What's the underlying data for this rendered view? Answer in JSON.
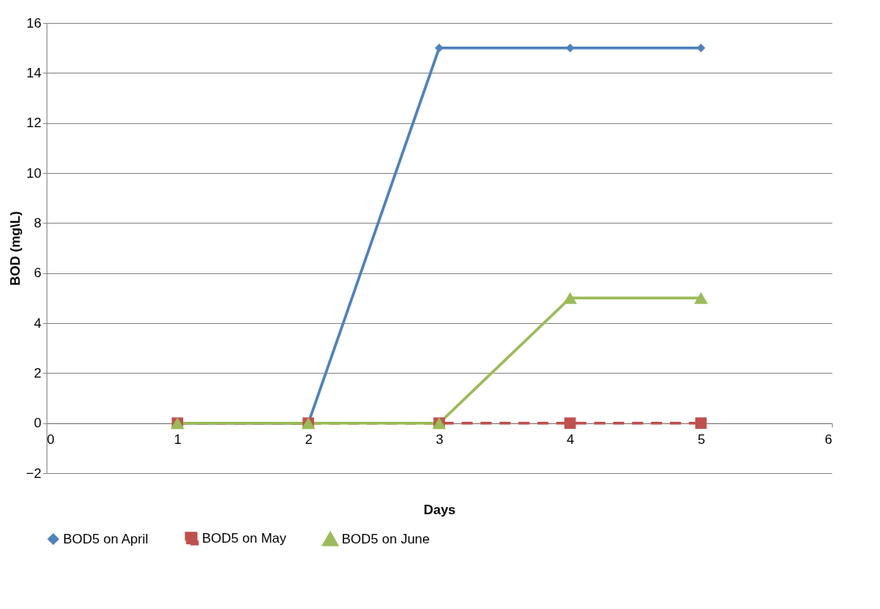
{
  "chart_data": {
    "type": "line",
    "xlabel": "Days",
    "ylabel": "BOD (mg\\L)",
    "x": [
      1,
      2,
      3,
      4,
      5
    ],
    "xlim": [
      0,
      6
    ],
    "xticks": [
      0,
      1,
      2,
      3,
      4,
      5,
      6
    ],
    "ylim": [
      -2,
      16
    ],
    "yticks": [
      -2,
      0,
      2,
      4,
      6,
      8,
      10,
      12,
      14,
      16
    ],
    "grid": "y",
    "legend": "bottom",
    "series": [
      {
        "name": "BOD5 on April",
        "color": "#4f81bd",
        "values": [
          0,
          0,
          15,
          15,
          15
        ],
        "marker": "diamond",
        "line_style": "solid"
      },
      {
        "name": "BOD5 on May",
        "color": "#c0504d",
        "values": [
          0,
          0,
          0,
          0,
          0
        ],
        "marker": "square",
        "line_style": "dashed"
      },
      {
        "name": "BOD5 on June",
        "color": "#9bbb59",
        "values": [
          0,
          0,
          0,
          5,
          5
        ],
        "marker": "triangle",
        "line_style": "solid"
      }
    ]
  }
}
